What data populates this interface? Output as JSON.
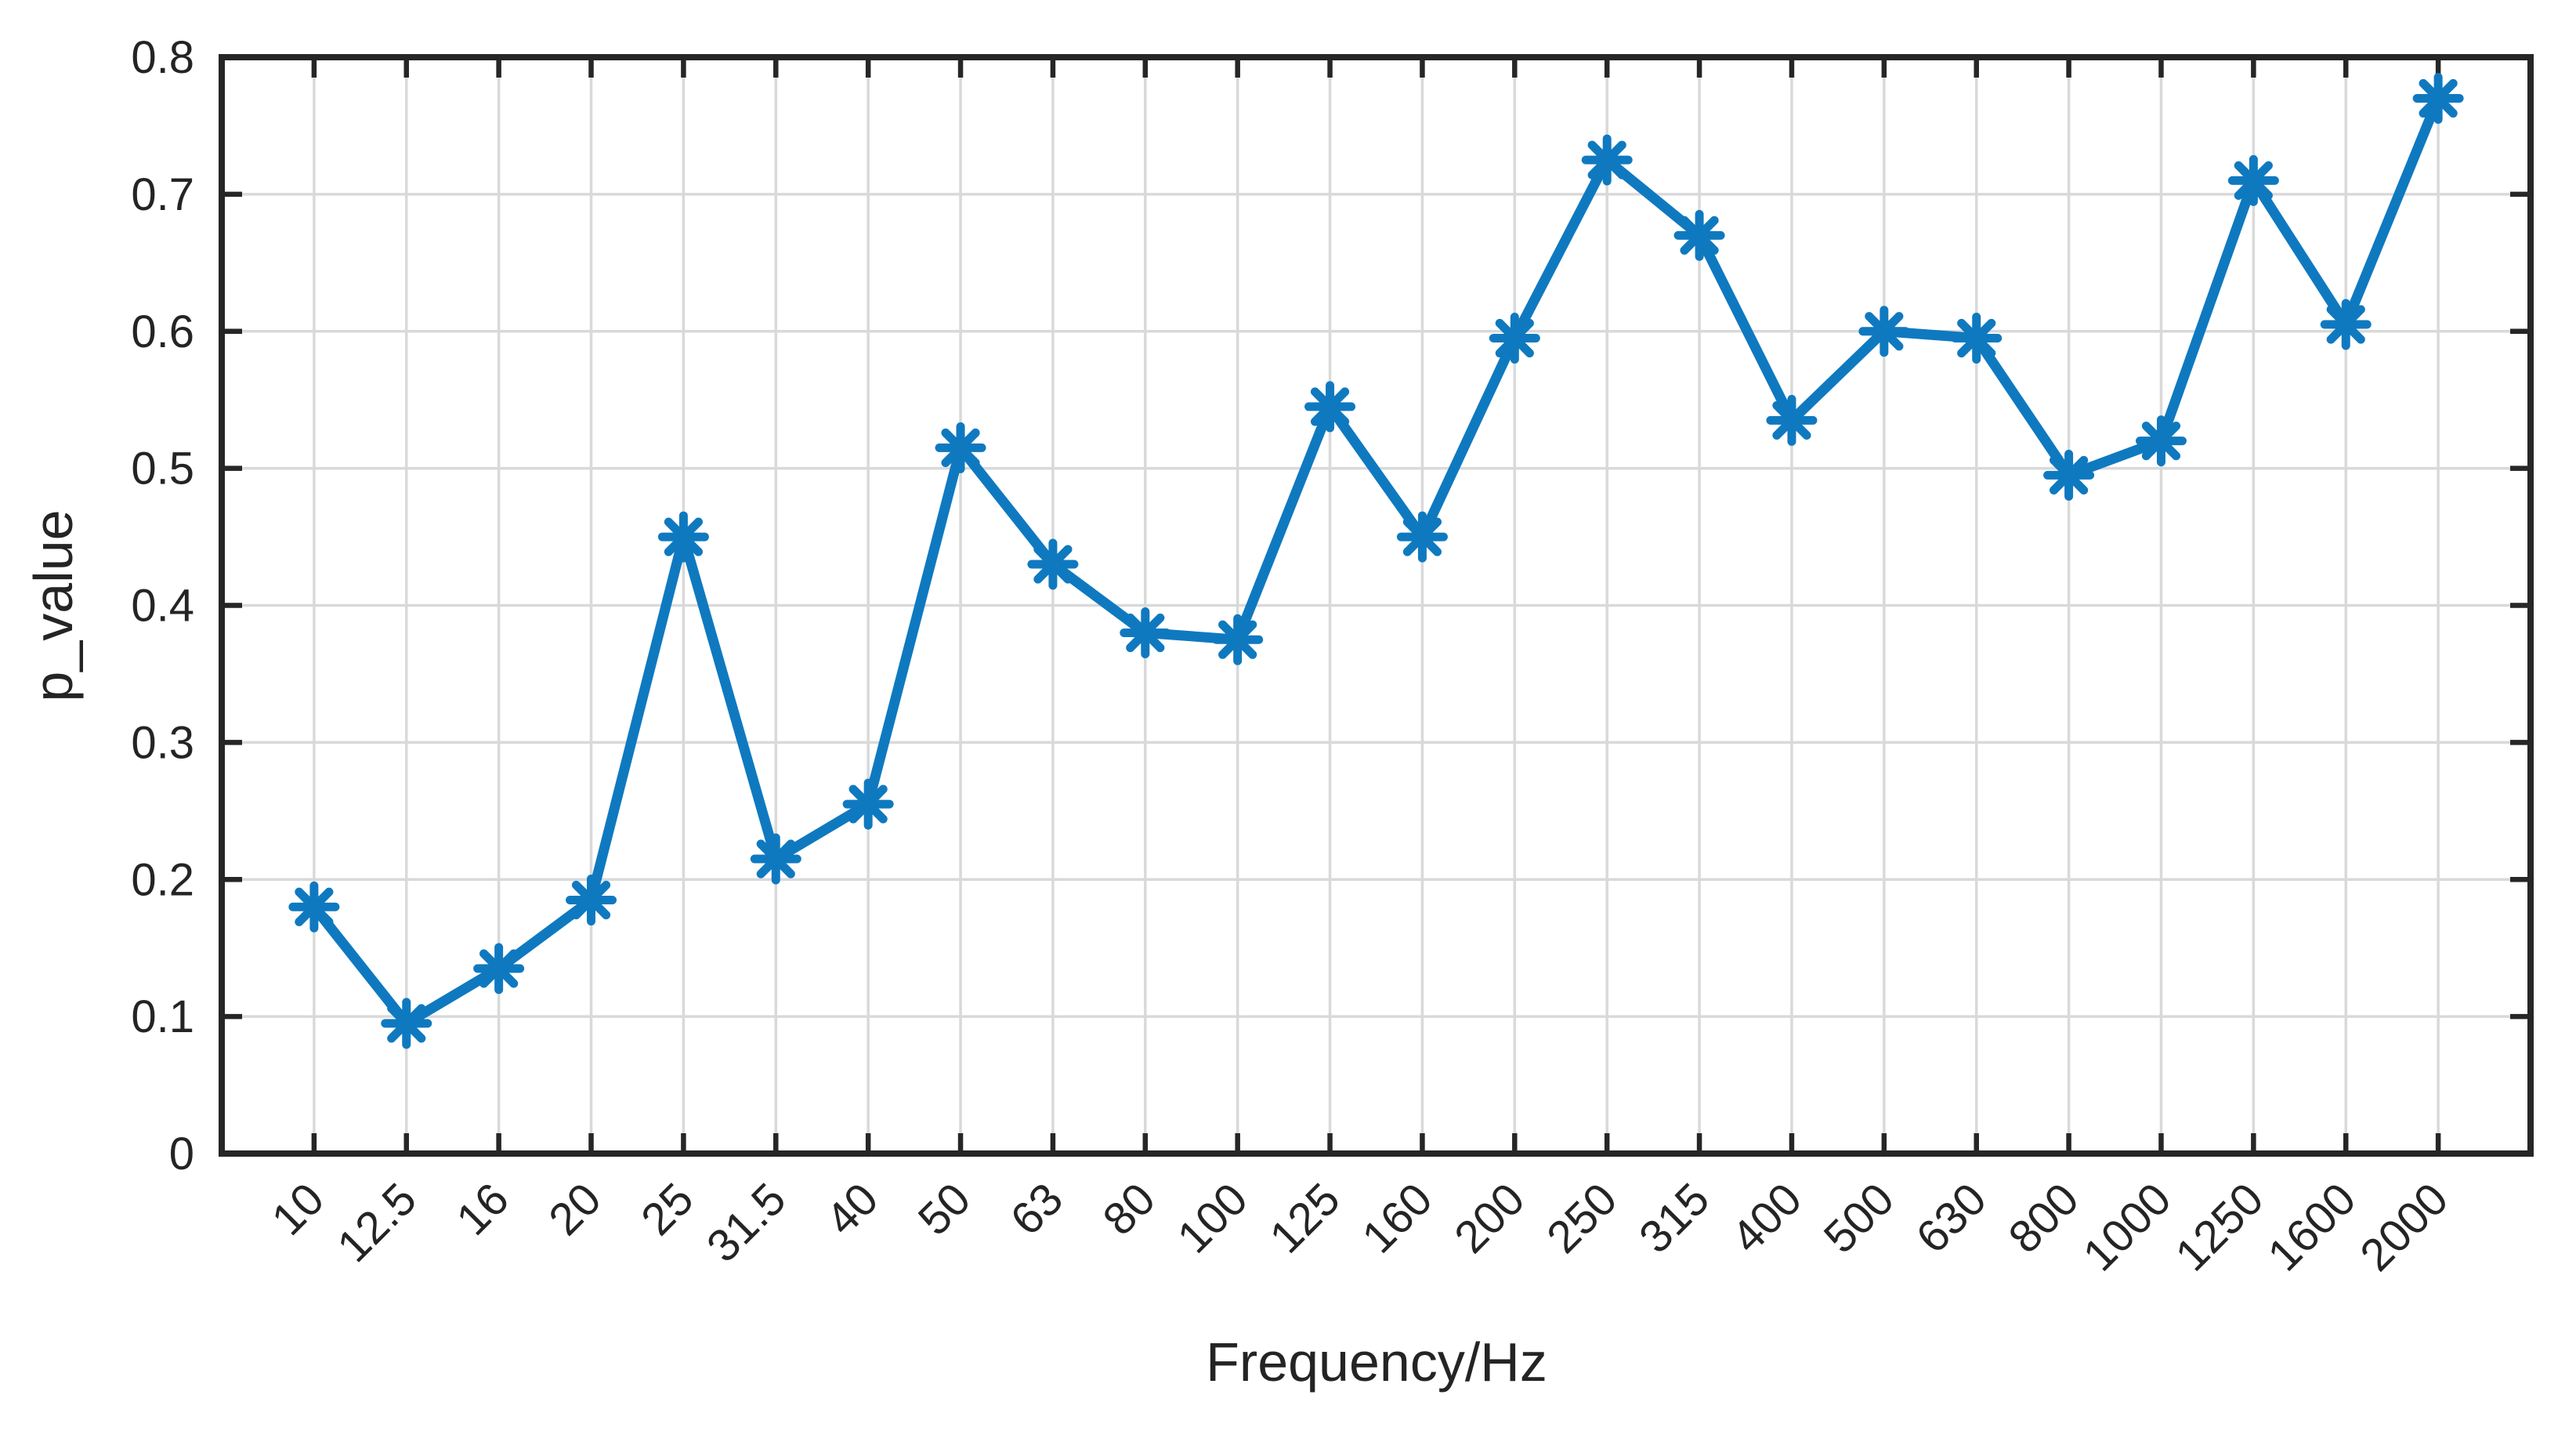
{
  "chart_data": {
    "type": "line",
    "title": "",
    "xlabel": "Frequency/Hz",
    "ylabel": "p_value",
    "categories": [
      "10",
      "12.5",
      "16",
      "20",
      "25",
      "31.5",
      "40",
      "50",
      "63",
      "80",
      "100",
      "125",
      "160",
      "200",
      "250",
      "315",
      "400",
      "500",
      "630",
      "800",
      "1000",
      "1250",
      "1600",
      "2000"
    ],
    "values": [
      0.18,
      0.095,
      0.135,
      0.185,
      0.45,
      0.215,
      0.255,
      0.515,
      0.43,
      0.38,
      0.375,
      0.545,
      0.45,
      0.595,
      0.725,
      0.67,
      0.535,
      0.6,
      0.595,
      0.495,
      0.52,
      0.71,
      0.605,
      0.77
    ],
    "ylim": [
      0,
      0.8
    ],
    "ytick_labels": [
      "0",
      "0.1",
      "0.2",
      "0.3",
      "0.4",
      "0.5",
      "0.6",
      "0.7",
      "0.8"
    ],
    "grid": "on",
    "legend": "none",
    "line_color": "#0f79c0",
    "marker": "asterisk",
    "marker_color": "#0f79c0",
    "axis_color": "#262626",
    "grid_color": "#d9d9d9",
    "text_color": "#242424",
    "background_color": "#ffffff"
  }
}
